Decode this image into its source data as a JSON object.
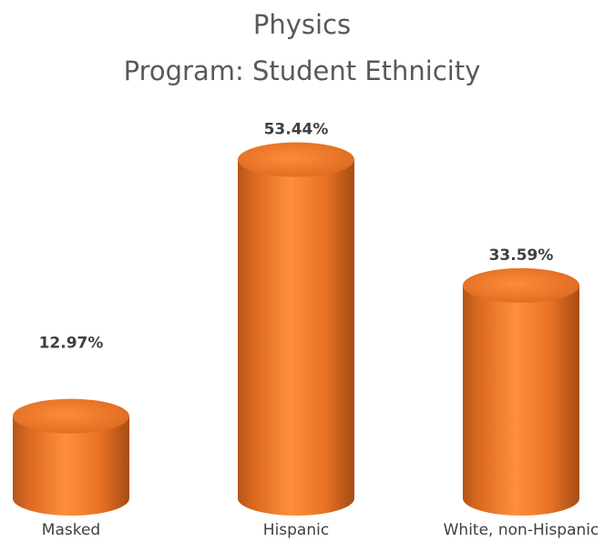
{
  "chart_data": {
    "type": "bar",
    "title": "Physics",
    "subtitle": "Program: Student Ethnicity",
    "categories": [
      "Masked",
      "Hispanic",
      "White, non-Hispanic"
    ],
    "values": [
      12.97,
      53.44,
      33.59
    ],
    "data_labels": [
      "12.97%",
      "53.44%",
      "33.59%"
    ],
    "value_unit": "%",
    "bar_color": "#F07C2A",
    "grid": false,
    "legend": "none"
  }
}
